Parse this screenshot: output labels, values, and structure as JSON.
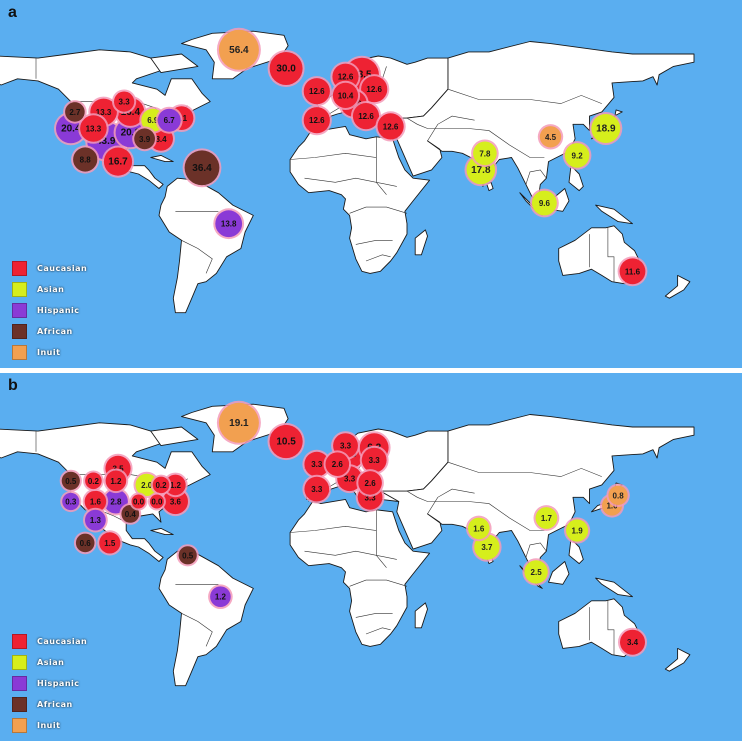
{
  "legend": [
    {
      "name": "Caucasian",
      "label": "Caucasian",
      "color": "#ee2233"
    },
    {
      "name": "Asian",
      "label": "Asian",
      "color": "#d6ee1c"
    },
    {
      "name": "Hispanic",
      "label": "Hispanic",
      "color": "#8a3ad6"
    },
    {
      "name": "African",
      "label": "African",
      "color": "#6b3128"
    },
    {
      "name": "Inuit",
      "label": "Inuit",
      "color": "#f2a050"
    }
  ],
  "panels": [
    {
      "letter": "a",
      "markers": [
        {
          "value": "56.4",
          "group": "Inuit",
          "lon": -42,
          "lat": 74
        },
        {
          "value": "30.0",
          "group": "Caucasian",
          "lon": -19,
          "lat": 65
        },
        {
          "value": "33.5",
          "group": "Caucasian",
          "lon": 18,
          "lat": 62
        },
        {
          "value": "12.6",
          "group": "Caucasian",
          "lon": 10,
          "lat": 61
        },
        {
          "value": "12.6",
          "group": "Caucasian",
          "lon": 24,
          "lat": 55
        },
        {
          "value": "12.6",
          "group": "Caucasian",
          "lon": -4,
          "lat": 54
        },
        {
          "value": "10.4",
          "group": "Caucasian",
          "lon": 10,
          "lat": 52
        },
        {
          "value": "12.6",
          "group": "Caucasian",
          "lon": 14,
          "lat": 48
        },
        {
          "value": "12.6",
          "group": "Caucasian",
          "lon": -4,
          "lat": 40
        },
        {
          "value": "12.6",
          "group": "Caucasian",
          "lon": 20,
          "lat": 42
        },
        {
          "value": "12.6",
          "group": "Caucasian",
          "lon": 32,
          "lat": 37
        },
        {
          "value": "3.3",
          "group": "Caucasian",
          "lon": -98,
          "lat": 49
        },
        {
          "value": "2.7",
          "group": "African",
          "lon": -122,
          "lat": 44
        },
        {
          "value": "13.3",
          "group": "Caucasian",
          "lon": -108,
          "lat": 44
        },
        {
          "value": "16.4",
          "group": "Caucasian",
          "lon": -95,
          "lat": 44
        },
        {
          "value": "6.9",
          "group": "Asian",
          "lon": -84,
          "lat": 40
        },
        {
          "value": "6.7",
          "group": "Hispanic",
          "lon": -76,
          "lat": 40
        },
        {
          "value": "8.1",
          "group": "Caucasian",
          "lon": -70,
          "lat": 41
        },
        {
          "value": "20.4",
          "group": "Hispanic",
          "lon": -124,
          "lat": 36
        },
        {
          "value": "13.3",
          "group": "Caucasian",
          "lon": -113,
          "lat": 36
        },
        {
          "value": "43.9",
          "group": "Hispanic",
          "lon": -107,
          "lat": 30
        },
        {
          "value": "20.0",
          "group": "Hispanic",
          "lon": -95,
          "lat": 34
        },
        {
          "value": "3.9",
          "group": "African",
          "lon": -88,
          "lat": 31
        },
        {
          "value": "8.4",
          "group": "Caucasian",
          "lon": -80,
          "lat": 31
        },
        {
          "value": "8.8",
          "group": "African",
          "lon": -117,
          "lat": 21
        },
        {
          "value": "16.7",
          "group": "Caucasian",
          "lon": -101,
          "lat": 20
        },
        {
          "value": "36.4",
          "group": "African",
          "lon": -60,
          "lat": 17
        },
        {
          "value": "13.8",
          "group": "Hispanic",
          "lon": -47,
          "lat": -10
        },
        {
          "value": "4.5",
          "group": "Inuit",
          "lon": 110,
          "lat": 32
        },
        {
          "value": "18.9",
          "group": "Asian",
          "lon": 137,
          "lat": 36
        },
        {
          "value": "7.8",
          "group": "Asian",
          "lon": 78,
          "lat": 24
        },
        {
          "value": "17.8",
          "group": "Asian",
          "lon": 76,
          "lat": 16
        },
        {
          "value": "9.2",
          "group": "Asian",
          "lon": 123,
          "lat": 23
        },
        {
          "value": "9.6",
          "group": "Asian",
          "lon": 107,
          "lat": 0
        },
        {
          "value": "11.6",
          "group": "Caucasian",
          "lon": 150,
          "lat": -33
        }
      ]
    },
    {
      "letter": "b",
      "markers": [
        {
          "value": "19.1",
          "group": "Inuit",
          "lon": -42,
          "lat": 74
        },
        {
          "value": "10.5",
          "group": "Caucasian",
          "lon": -19,
          "lat": 65
        },
        {
          "value": "3.3",
          "group": "Caucasian",
          "lon": 10,
          "lat": 63
        },
        {
          "value": "6.6",
          "group": "Caucasian",
          "lon": 12,
          "lat": 59
        },
        {
          "value": "6.2",
          "group": "Caucasian",
          "lon": 24,
          "lat": 62
        },
        {
          "value": "3.3",
          "group": "Caucasian",
          "lon": 24,
          "lat": 56
        },
        {
          "value": "3.3",
          "group": "Caucasian",
          "lon": -4,
          "lat": 54
        },
        {
          "value": "2.6",
          "group": "Caucasian",
          "lon": 6,
          "lat": 54
        },
        {
          "value": "3.3",
          "group": "Caucasian",
          "lon": -4,
          "lat": 42
        },
        {
          "value": "3.3",
          "group": "Caucasian",
          "lon": 12,
          "lat": 47
        },
        {
          "value": "2.6",
          "group": "Caucasian",
          "lon": 22,
          "lat": 45
        },
        {
          "value": "3.3",
          "group": "Caucasian",
          "lon": 22,
          "lat": 38
        },
        {
          "value": "3.5",
          "group": "Caucasian",
          "lon": -101,
          "lat": 52
        },
        {
          "value": "0.5",
          "group": "African",
          "lon": -124,
          "lat": 46
        },
        {
          "value": "0.2",
          "group": "Caucasian",
          "lon": -113,
          "lat": 46
        },
        {
          "value": "1.2",
          "group": "Caucasian",
          "lon": -102,
          "lat": 46
        },
        {
          "value": "2.0",
          "group": "Asian",
          "lon": -87,
          "lat": 44
        },
        {
          "value": "0.2",
          "group": "Caucasian",
          "lon": -80,
          "lat": 44
        },
        {
          "value": "1.2",
          "group": "Caucasian",
          "lon": -73,
          "lat": 44
        },
        {
          "value": "0.3",
          "group": "Hispanic",
          "lon": -124,
          "lat": 36
        },
        {
          "value": "1.6",
          "group": "Caucasian",
          "lon": -112,
          "lat": 36
        },
        {
          "value": "2.8",
          "group": "Hispanic",
          "lon": -102,
          "lat": 36
        },
        {
          "value": "0.0",
          "group": "Caucasian",
          "lon": -91,
          "lat": 36
        },
        {
          "value": "0.0",
          "group": "Caucasian",
          "lon": -82,
          "lat": 36
        },
        {
          "value": "3.6",
          "group": "Caucasian",
          "lon": -73,
          "lat": 36
        },
        {
          "value": "0.4",
          "group": "African",
          "lon": -95,
          "lat": 30
        },
        {
          "value": "1.3",
          "group": "Hispanic",
          "lon": -112,
          "lat": 27
        },
        {
          "value": "0.6",
          "group": "African",
          "lon": -117,
          "lat": 16
        },
        {
          "value": "1.5",
          "group": "Caucasian",
          "lon": -105,
          "lat": 16
        },
        {
          "value": "0.5",
          "group": "African",
          "lon": -67,
          "lat": 10
        },
        {
          "value": "1.2",
          "group": "Hispanic",
          "lon": -51,
          "lat": -10
        },
        {
          "value": "1.7",
          "group": "Asian",
          "lon": 108,
          "lat": 28
        },
        {
          "value": "0.8",
          "group": "Inuit",
          "lon": 143,
          "lat": 39
        },
        {
          "value": "1.0",
          "group": "Inuit",
          "lon": 140,
          "lat": 34
        },
        {
          "value": "1.6",
          "group": "Asian",
          "lon": 75,
          "lat": 23
        },
        {
          "value": "1.9",
          "group": "Asian",
          "lon": 123,
          "lat": 22
        },
        {
          "value": "3.7",
          "group": "Asian",
          "lon": 79,
          "lat": 14
        },
        {
          "value": "2.5",
          "group": "Asian",
          "lon": 103,
          "lat": 2
        },
        {
          "value": "3.4",
          "group": "Caucasian",
          "lon": 150,
          "lat": -32
        }
      ]
    }
  ]
}
